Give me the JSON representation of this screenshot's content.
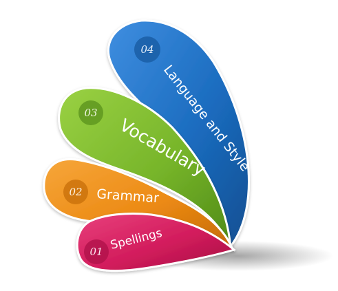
{
  "petals": [
    {
      "number": "04",
      "label": "Language and Style",
      "color": "#1f6fc0"
    },
    {
      "number": "03",
      "label": "Vocabulary",
      "color": "#7dbb2e"
    },
    {
      "number": "02",
      "label": "Grammar",
      "color": "#ee8d17"
    },
    {
      "number": "01",
      "label": "Spellings",
      "color": "#d41f5f"
    }
  ]
}
